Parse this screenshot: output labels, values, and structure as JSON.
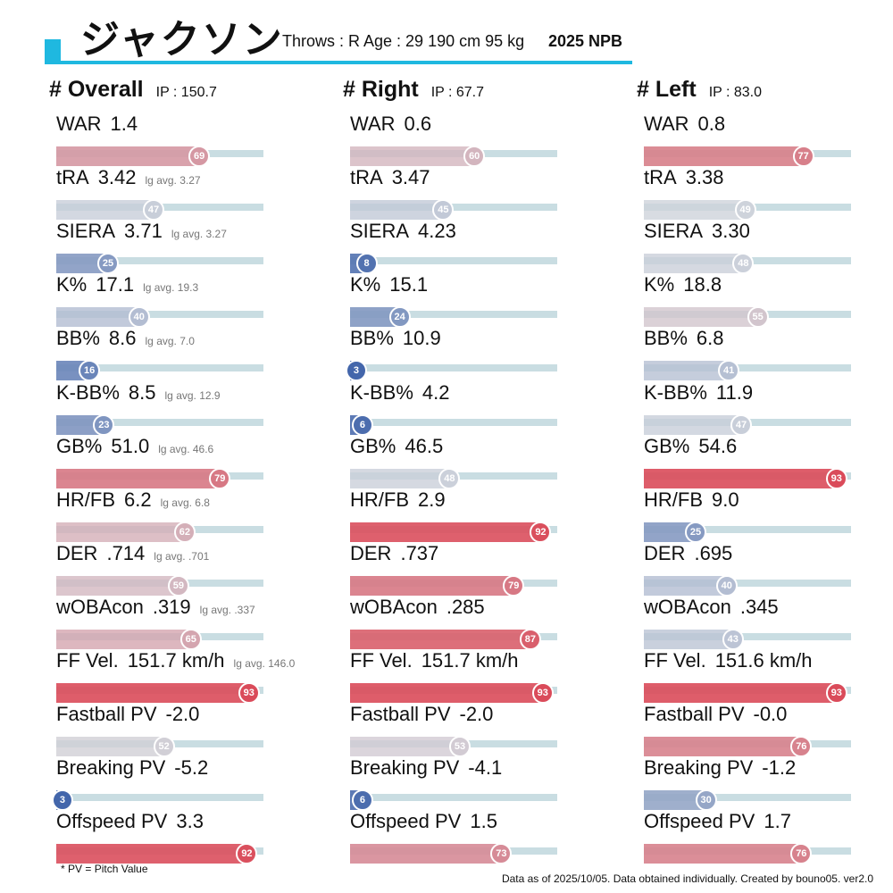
{
  "header": {
    "player_name": "ジャクソン",
    "info": "Throws : R  Age : 29  190 cm 95 kg",
    "season": "2025 NPB"
  },
  "colors": {
    "accent": "#1fb8e0",
    "track": "#c9dde2",
    "low": "#3a5fa8",
    "mid": "#d1d5dc",
    "high": "#dc3545"
  },
  "chart_data": {
    "type": "bar",
    "scale_max": 100,
    "columns": [
      {
        "title": "# Overall",
        "ip": "IP : 150.7",
        "stats": [
          {
            "name": "WAR",
            "value": "1.4",
            "lg_avg": "",
            "percentile": 69
          },
          {
            "name": "tRA",
            "value": "3.42",
            "lg_avg": "lg avg. 3.27",
            "percentile": 47
          },
          {
            "name": "SIERA",
            "value": "3.71",
            "lg_avg": "lg avg. 3.27",
            "percentile": 25
          },
          {
            "name": "K%",
            "value": "17.1",
            "lg_avg": "lg avg. 19.3",
            "percentile": 40
          },
          {
            "name": "BB%",
            "value": "8.6",
            "lg_avg": "lg avg. 7.0",
            "percentile": 16
          },
          {
            "name": "K-BB%",
            "value": "8.5",
            "lg_avg": "lg avg. 12.9",
            "percentile": 23
          },
          {
            "name": "GB%",
            "value": "51.0",
            "lg_avg": "lg avg. 46.6",
            "percentile": 79
          },
          {
            "name": "HR/FB",
            "value": "6.2",
            "lg_avg": "lg avg. 6.8",
            "percentile": 62
          },
          {
            "name": "DER",
            "value": ".714",
            "lg_avg": "lg avg. .701",
            "percentile": 59
          },
          {
            "name": "wOBAcon",
            "value": ".319",
            "lg_avg": "lg avg. .337",
            "percentile": 65
          },
          {
            "name": "FF Vel.",
            "value": "151.7 km/h",
            "lg_avg": "lg avg. 146.0",
            "percentile": 93
          },
          {
            "name": "Fastball PV",
            "value": "-2.0",
            "lg_avg": "",
            "percentile": 52
          },
          {
            "name": "Breaking PV",
            "value": "-5.2",
            "lg_avg": "",
            "percentile": 3
          },
          {
            "name": "Offspeed PV",
            "value": "3.3",
            "lg_avg": "",
            "percentile": 92
          }
        ]
      },
      {
        "title": "# Right",
        "ip": "IP : 67.7",
        "stats": [
          {
            "name": "WAR",
            "value": "0.6",
            "lg_avg": "",
            "percentile": 60
          },
          {
            "name": "tRA",
            "value": "3.47",
            "lg_avg": "",
            "percentile": 45
          },
          {
            "name": "SIERA",
            "value": "4.23",
            "lg_avg": "",
            "percentile": 8
          },
          {
            "name": "K%",
            "value": "15.1",
            "lg_avg": "",
            "percentile": 24
          },
          {
            "name": "BB%",
            "value": "10.9",
            "lg_avg": "",
            "percentile": 3
          },
          {
            "name": "K-BB%",
            "value": "4.2",
            "lg_avg": "",
            "percentile": 6
          },
          {
            "name": "GB%",
            "value": "46.5",
            "lg_avg": "",
            "percentile": 48
          },
          {
            "name": "HR/FB",
            "value": "2.9",
            "lg_avg": "",
            "percentile": 92
          },
          {
            "name": "DER",
            "value": ".737",
            "lg_avg": "",
            "percentile": 79
          },
          {
            "name": "wOBAcon",
            "value": ".285",
            "lg_avg": "",
            "percentile": 87
          },
          {
            "name": "FF Vel.",
            "value": "151.7 km/h",
            "lg_avg": "",
            "percentile": 93
          },
          {
            "name": "Fastball PV",
            "value": "-2.0",
            "lg_avg": "",
            "percentile": 53
          },
          {
            "name": "Breaking PV",
            "value": "-4.1",
            "lg_avg": "",
            "percentile": 6
          },
          {
            "name": "Offspeed PV",
            "value": "1.5",
            "lg_avg": "",
            "percentile": 73
          }
        ]
      },
      {
        "title": "# Left",
        "ip": "IP : 83.0",
        "stats": [
          {
            "name": "WAR",
            "value": "0.8",
            "lg_avg": "",
            "percentile": 77
          },
          {
            "name": "tRA",
            "value": "3.38",
            "lg_avg": "",
            "percentile": 49
          },
          {
            "name": "SIERA",
            "value": "3.30",
            "lg_avg": "",
            "percentile": 48
          },
          {
            "name": "K%",
            "value": "18.8",
            "lg_avg": "",
            "percentile": 55
          },
          {
            "name": "BB%",
            "value": "6.8",
            "lg_avg": "",
            "percentile": 41
          },
          {
            "name": "K-BB%",
            "value": "11.9",
            "lg_avg": "",
            "percentile": 47
          },
          {
            "name": "GB%",
            "value": "54.6",
            "lg_avg": "",
            "percentile": 93
          },
          {
            "name": "HR/FB",
            "value": "9.0",
            "lg_avg": "",
            "percentile": 25
          },
          {
            "name": "DER",
            "value": ".695",
            "lg_avg": "",
            "percentile": 40
          },
          {
            "name": "wOBAcon",
            "value": ".345",
            "lg_avg": "",
            "percentile": 43
          },
          {
            "name": "FF Vel.",
            "value": "151.6 km/h",
            "lg_avg": "",
            "percentile": 93
          },
          {
            "name": "Fastball PV",
            "value": "-0.0",
            "lg_avg": "",
            "percentile": 76
          },
          {
            "name": "Breaking PV",
            "value": "-1.2",
            "lg_avg": "",
            "percentile": 30
          },
          {
            "name": "Offspeed PV",
            "value": "1.7",
            "lg_avg": "",
            "percentile": 76
          }
        ]
      }
    ]
  },
  "footer": {
    "note": "* PV = Pitch Value",
    "credit": "Data as of 2025/10/05. Data obtained individually. Created by bouno05.  ver2.0"
  }
}
